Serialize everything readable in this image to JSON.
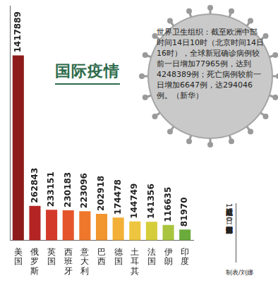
{
  "chart_data": {
    "type": "bar",
    "title": "国际疫情",
    "categories": [
      "美国",
      "俄罗斯",
      "英国",
      "西班牙",
      "意大利",
      "巴西",
      "德国",
      "土耳其",
      "法国",
      "伊朗",
      "印度"
    ],
    "values": [
      1417889,
      262843,
      233151,
      230183,
      223096,
      202918,
      174478,
      144749,
      141356,
      116635,
      81970
    ],
    "colors": [
      "#8e1b1b",
      "#b52424",
      "#d33a2a",
      "#e5552b",
      "#ee772c",
      "#f1952f",
      "#f3b038",
      "#eec53e",
      "#d6cd3c",
      "#a9c43f",
      "#6aab3b"
    ],
    "ylim": [
      0,
      1800000
    ],
    "grid": false,
    "data_labels": true,
    "tick_labels": "x",
    "annotations": [
      "世界卫生组织：截至欧洲中部时间14日10时（北京时间14日16时），全球新冠确诊病例较前一日增加77965例，达到4248389例；死亡病例较前一日增加6647例，达294046例。（新华）",
      "截至北京时间15日20时部分国家新冠肺炎病例数",
      "制表/刘娜"
    ]
  }
}
